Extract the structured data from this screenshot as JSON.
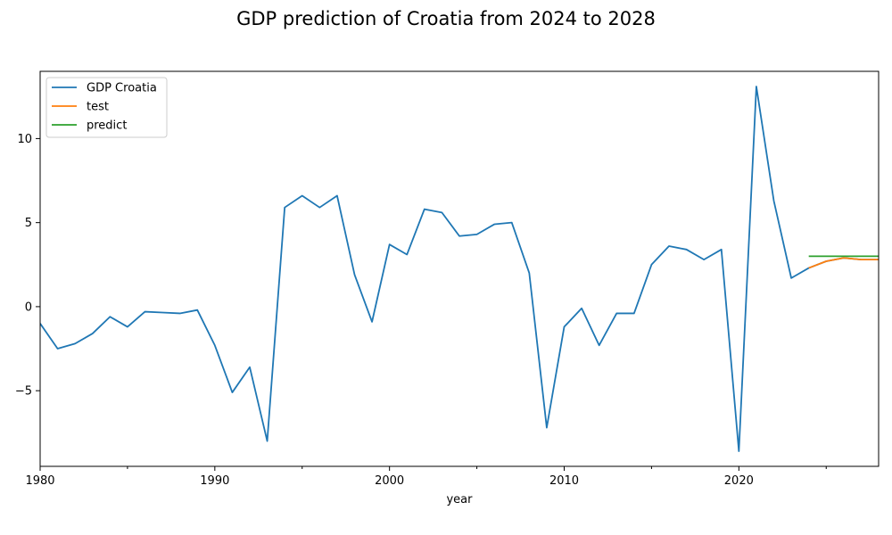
{
  "chart_data": {
    "type": "line",
    "title": "GDP prediction of Croatia from 2024 to 2028",
    "xlabel": "year",
    "ylabel": "",
    "xlim": [
      1980,
      2028
    ],
    "ylim": [
      -9.5,
      14
    ],
    "x_ticks": [
      1980,
      1990,
      2000,
      2010,
      2020
    ],
    "x_minor_ticks": [
      1985,
      1995,
      2005,
      2015,
      2025
    ],
    "y_ticks": [
      -5,
      0,
      5,
      10
    ],
    "y_tick_labels": [
      "−5",
      "0",
      "5",
      "10"
    ],
    "grid": false,
    "legend_position": "top-left",
    "series": [
      {
        "name": "GDP Croatia",
        "color": "#1f77b4",
        "points": [
          [
            1980,
            -1.0
          ],
          [
            1981,
            -2.5
          ],
          [
            1982,
            -2.2
          ],
          [
            1983,
            -1.6
          ],
          [
            1984,
            -0.6
          ],
          [
            1985,
            -1.2
          ],
          [
            1986,
            -0.3
          ],
          [
            1987,
            -0.35
          ],
          [
            1988,
            -0.4
          ],
          [
            1989,
            -0.2
          ],
          [
            1990,
            -2.3
          ],
          [
            1991,
            -5.1
          ],
          [
            1992,
            -3.6
          ],
          [
            1993,
            -8.0
          ],
          [
            1994,
            5.9
          ],
          [
            1995,
            6.6
          ],
          [
            1996,
            5.9
          ],
          [
            1997,
            6.6
          ],
          [
            1998,
            1.9
          ],
          [
            1999,
            -0.9
          ],
          [
            2000,
            3.7
          ],
          [
            2001,
            3.1
          ],
          [
            2002,
            5.8
          ],
          [
            2003,
            5.6
          ],
          [
            2004,
            4.2
          ],
          [
            2005,
            4.3
          ],
          [
            2006,
            4.9
          ],
          [
            2007,
            5.0
          ],
          [
            2008,
            2.0
          ],
          [
            2009,
            -7.2
          ],
          [
            2010,
            -1.2
          ],
          [
            2011,
            -0.1
          ],
          [
            2012,
            -2.3
          ],
          [
            2013,
            -0.4
          ],
          [
            2014,
            -0.4
          ],
          [
            2015,
            2.5
          ],
          [
            2016,
            3.6
          ],
          [
            2017,
            3.4
          ],
          [
            2018,
            2.8
          ],
          [
            2019,
            3.4
          ],
          [
            2020,
            -8.6
          ],
          [
            2021,
            13.1
          ],
          [
            2022,
            6.3
          ],
          [
            2023,
            1.7
          ],
          [
            2024,
            2.3
          ],
          [
            2025,
            2.7
          ],
          [
            2026,
            2.9
          ],
          [
            2027,
            2.8
          ],
          [
            2028,
            2.8
          ]
        ]
      },
      {
        "name": "test",
        "color": "#ff7f0e",
        "points": [
          [
            2024,
            2.3
          ],
          [
            2025,
            2.7
          ],
          [
            2026,
            2.9
          ],
          [
            2027,
            2.8
          ],
          [
            2028,
            2.8
          ]
        ]
      },
      {
        "name": "predict",
        "color": "#2ca02c",
        "points": [
          [
            2024,
            3.0
          ],
          [
            2025,
            3.0
          ],
          [
            2026,
            3.0
          ],
          [
            2027,
            3.0
          ],
          [
            2028,
            3.0
          ]
        ]
      }
    ]
  }
}
